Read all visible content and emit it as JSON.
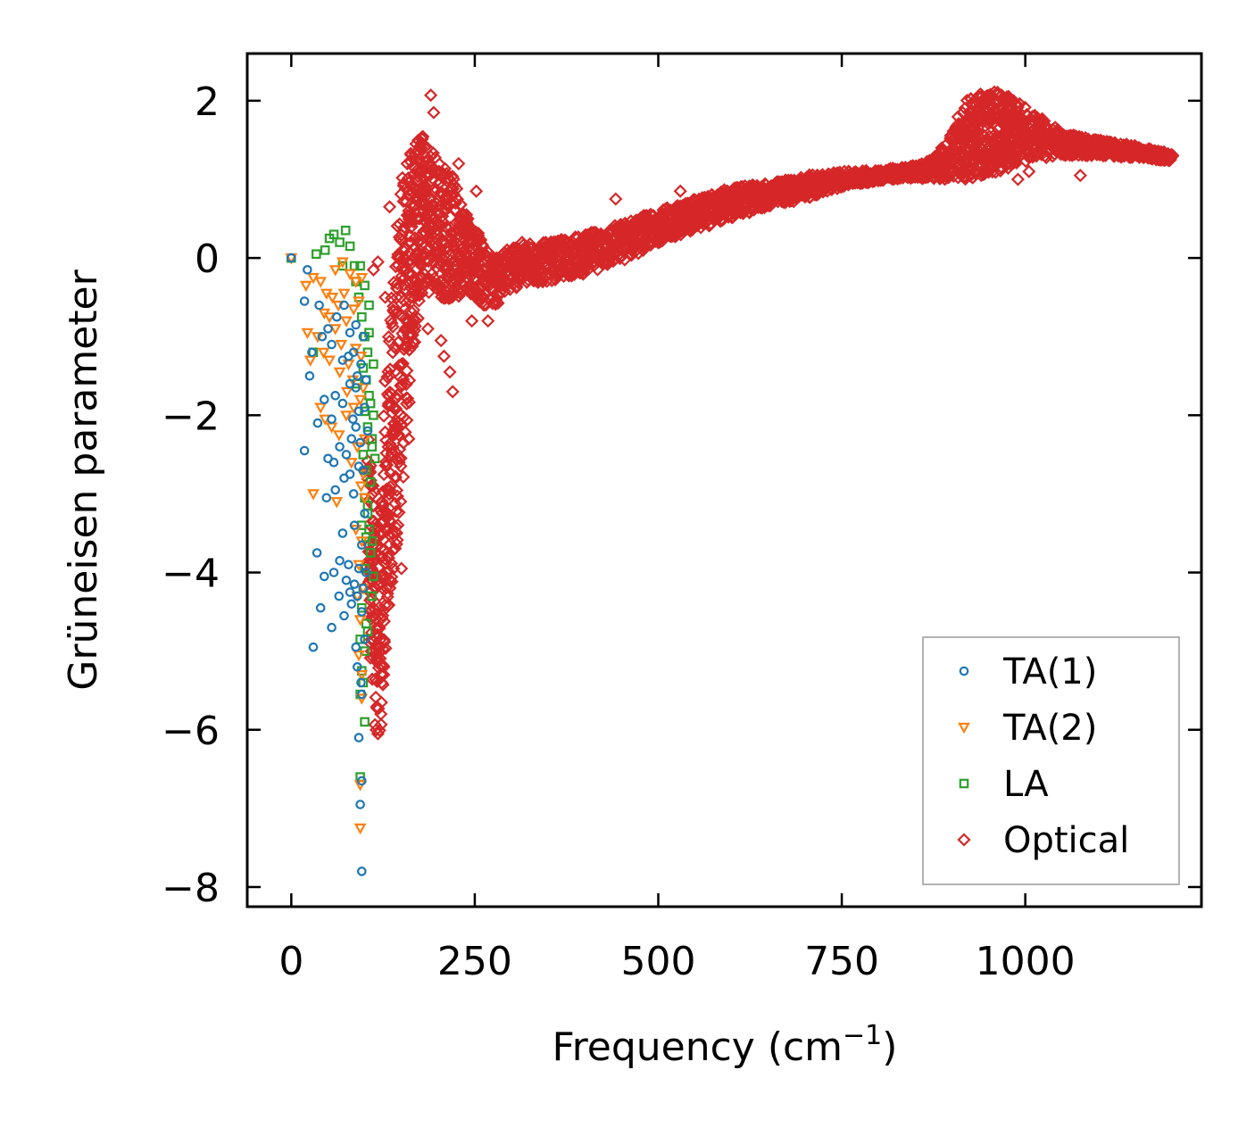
{
  "chart_data": {
    "type": "scatter",
    "title": "",
    "xlabel": "Frequency (cm",
    "xlabel_sup": "−1",
    "xlabel_close": ")",
    "ylabel": "Grüneisen parameter",
    "xlim": [
      -60,
      1240
    ],
    "ylim": [
      -8.25,
      2.6
    ],
    "xticks": [
      0,
      250,
      500,
      750,
      1000
    ],
    "xtick_labels": [
      "0",
      "250",
      "500",
      "750",
      "1000"
    ],
    "yticks": [
      2,
      0,
      -2,
      -4,
      -6,
      -8
    ],
    "ytick_labels": [
      "2",
      "0",
      "−2",
      "−4",
      "−6",
      "−8"
    ],
    "grid": false,
    "legend_position": "lower-right",
    "series": [
      {
        "name": "TA(1)",
        "marker": "circle",
        "color": "#1f77b4",
        "points": [
          [
            0,
            0
          ],
          [
            22,
            -0.15
          ],
          [
            18,
            -0.55
          ],
          [
            38,
            -0.6
          ],
          [
            28,
            -1.2
          ],
          [
            42,
            -1.0
          ],
          [
            50,
            -0.9
          ],
          [
            55,
            -1.1
          ],
          [
            62,
            -0.75
          ],
          [
            70,
            -1.3
          ],
          [
            78,
            -1.25
          ],
          [
            85,
            -1.2
          ],
          [
            90,
            -1.5
          ],
          [
            95,
            -1.35
          ],
          [
            25,
            -1.5
          ],
          [
            45,
            -1.8
          ],
          [
            55,
            -2.05
          ],
          [
            60,
            -1.75
          ],
          [
            70,
            -1.85
          ],
          [
            80,
            -1.6
          ],
          [
            88,
            -1.65
          ],
          [
            92,
            -1.95
          ],
          [
            36,
            -2.1
          ],
          [
            18,
            -2.45
          ],
          [
            50,
            -2.55
          ],
          [
            58,
            -2.6
          ],
          [
            66,
            -2.4
          ],
          [
            75,
            -2.5
          ],
          [
            82,
            -2.3
          ],
          [
            88,
            -2.15
          ],
          [
            94,
            -2.35
          ],
          [
            48,
            -3.05
          ],
          [
            60,
            -2.95
          ],
          [
            72,
            -2.8
          ],
          [
            80,
            -2.75
          ],
          [
            85,
            -3.0
          ],
          [
            92,
            -2.65
          ],
          [
            70,
            -3.5
          ],
          [
            35,
            -3.75
          ],
          [
            45,
            -4.05
          ],
          [
            58,
            -4.0
          ],
          [
            66,
            -3.85
          ],
          [
            75,
            -4.1
          ],
          [
            80,
            -4.25
          ],
          [
            86,
            -4.15
          ],
          [
            92,
            -3.95
          ],
          [
            40,
            -4.45
          ],
          [
            55,
            -4.7
          ],
          [
            65,
            -4.3
          ],
          [
            72,
            -4.55
          ],
          [
            82,
            -4.4
          ],
          [
            90,
            -4.3
          ],
          [
            96,
            -4.5
          ],
          [
            30,
            -4.95
          ],
          [
            88,
            -4.95
          ],
          [
            90,
            -5.2
          ],
          [
            95,
            -5.4
          ],
          [
            92,
            -6.1
          ],
          [
            96,
            -6.65
          ],
          [
            94,
            -6.95
          ],
          [
            96,
            -7.8
          ],
          [
            80,
            -0.95
          ],
          [
            88,
            -0.85
          ],
          [
            98,
            -1.0
          ],
          [
            102,
            -1.55
          ],
          [
            100,
            -1.9
          ],
          [
            104,
            -2.2
          ],
          [
            98,
            -2.7
          ],
          [
            100,
            -3.25
          ],
          [
            96,
            -3.65
          ],
          [
            102,
            -4.0
          ],
          [
            98,
            -4.2
          ],
          [
            100,
            -4.85
          ],
          [
            96,
            -5.55
          ],
          [
            86,
            -3.4
          ],
          [
            78,
            -3.9
          ],
          [
            84,
            -2.05
          ],
          [
            72,
            -0.6
          ]
        ]
      },
      {
        "name": "TA(2)",
        "marker": "triangle-down",
        "color": "#ff7f0e",
        "points": [
          [
            0,
            0
          ],
          [
            20,
            -0.35
          ],
          [
            30,
            -0.25
          ],
          [
            40,
            -0.3
          ],
          [
            48,
            -0.45
          ],
          [
            56,
            -0.5
          ],
          [
            64,
            -0.6
          ],
          [
            72,
            -0.45
          ],
          [
            80,
            -0.2
          ],
          [
            88,
            -0.3
          ],
          [
            96,
            -0.25
          ],
          [
            45,
            -0.7
          ],
          [
            60,
            -0.9
          ],
          [
            75,
            -0.8
          ],
          [
            85,
            -0.65
          ],
          [
            92,
            -0.55
          ],
          [
            22,
            -0.95
          ],
          [
            36,
            -1.0
          ],
          [
            44,
            -1.2
          ],
          [
            52,
            -1.3
          ],
          [
            68,
            -1.1
          ],
          [
            78,
            -1.35
          ],
          [
            88,
            -1.15
          ],
          [
            95,
            -1.25
          ],
          [
            26,
            -1.3
          ],
          [
            40,
            -1.9
          ],
          [
            46,
            -2.05
          ],
          [
            55,
            -2.15
          ],
          [
            65,
            -2.25
          ],
          [
            75,
            -2.0
          ],
          [
            85,
            -1.9
          ],
          [
            94,
            -1.8
          ],
          [
            90,
            -2.4
          ],
          [
            82,
            -2.6
          ],
          [
            95,
            -2.9
          ],
          [
            30,
            -3.0
          ],
          [
            62,
            -3.1
          ],
          [
            88,
            -3.45
          ],
          [
            96,
            -3.6
          ],
          [
            92,
            -3.9
          ],
          [
            90,
            -4.3
          ],
          [
            94,
            -4.6
          ],
          [
            92,
            -5.05
          ],
          [
            96,
            -5.3
          ],
          [
            94,
            -6.7
          ],
          [
            94,
            -7.25
          ],
          [
            60,
            -0.15
          ],
          [
            70,
            -0.05
          ],
          [
            84,
            -1.55
          ],
          [
            98,
            -1.65
          ],
          [
            100,
            -2.3
          ],
          [
            98,
            -2.75
          ],
          [
            100,
            -3.05
          ],
          [
            98,
            -4.2
          ],
          [
            96,
            -5.6
          ],
          [
            76,
            -1.7
          ],
          [
            66,
            -1.45
          ],
          [
            52,
            -0.75
          ]
        ]
      },
      {
        "name": "LA",
        "marker": "square",
        "color": "#2ca02c",
        "points": [
          [
            0,
            0
          ],
          [
            34,
            0.05
          ],
          [
            46,
            0.1
          ],
          [
            52,
            0.25
          ],
          [
            58,
            0.3
          ],
          [
            66,
            0.2
          ],
          [
            74,
            0.35
          ],
          [
            80,
            0.15
          ],
          [
            70,
            -0.1
          ],
          [
            86,
            -0.1
          ],
          [
            94,
            -0.1
          ],
          [
            100,
            -0.35
          ],
          [
            92,
            -0.5
          ],
          [
            96,
            -0.75
          ],
          [
            100,
            -1.0
          ],
          [
            104,
            -1.2
          ],
          [
            98,
            -1.4
          ],
          [
            102,
            -1.55
          ],
          [
            106,
            -1.75
          ],
          [
            100,
            -1.95
          ],
          [
            104,
            -2.15
          ],
          [
            110,
            -2.3
          ],
          [
            98,
            -2.5
          ],
          [
            114,
            -2.55
          ],
          [
            102,
            -2.7
          ],
          [
            108,
            -2.85
          ],
          [
            100,
            -3.05
          ],
          [
            104,
            -3.25
          ],
          [
            96,
            -3.4
          ],
          [
            102,
            -3.55
          ],
          [
            108,
            -3.75
          ],
          [
            100,
            -3.95
          ],
          [
            112,
            -4.05
          ],
          [
            98,
            -4.2
          ],
          [
            110,
            -4.3
          ],
          [
            96,
            -4.45
          ],
          [
            102,
            -4.65
          ],
          [
            94,
            -4.85
          ],
          [
            100,
            -5.0
          ],
          [
            96,
            -5.25
          ],
          [
            94,
            -5.55
          ],
          [
            100,
            -5.9
          ],
          [
            94,
            -6.6
          ],
          [
            112,
            -1.35
          ],
          [
            106,
            -0.95
          ],
          [
            108,
            -1.85
          ],
          [
            110,
            -2.4
          ],
          [
            104,
            -3.15
          ],
          [
            106,
            -3.45
          ],
          [
            104,
            -4.75
          ],
          [
            98,
            -5.4
          ],
          [
            90,
            -1.6
          ],
          [
            30,
            -1.2
          ],
          [
            88,
            -0.3
          ],
          [
            106,
            -0.6
          ],
          [
            110,
            -3.6
          ],
          [
            112,
            -2.0
          ]
        ]
      },
      {
        "name": "Optical",
        "marker": "diamond",
        "color": "#d62728",
        "points": []
      }
    ],
    "optical_band": {
      "center": [
        [
          105,
          -3.5
        ],
        [
          110,
          -4.0
        ],
        [
          115,
          -4.6
        ],
        [
          120,
          -4.8
        ],
        [
          125,
          -4.2
        ],
        [
          130,
          -3.0
        ],
        [
          140,
          -2.0
        ],
        [
          150,
          -1.0
        ],
        [
          165,
          0.2
        ],
        [
          180,
          0.6
        ],
        [
          200,
          0.4
        ],
        [
          220,
          0.25
        ],
        [
          240,
          0.1
        ],
        [
          260,
          -0.2
        ],
        [
          280,
          -0.3
        ],
        [
          300,
          -0.1
        ],
        [
          350,
          -0.05
        ],
        [
          400,
          0.05
        ],
        [
          450,
          0.2
        ],
        [
          500,
          0.4
        ],
        [
          550,
          0.55
        ],
        [
          600,
          0.7
        ],
        [
          650,
          0.8
        ],
        [
          700,
          0.9
        ],
        [
          750,
          1.0
        ],
        [
          800,
          1.05
        ],
        [
          850,
          1.1
        ],
        [
          880,
          1.15
        ],
        [
          900,
          1.3
        ],
        [
          920,
          1.5
        ],
        [
          950,
          1.6
        ],
        [
          980,
          1.6
        ],
        [
          1010,
          1.55
        ],
        [
          1050,
          1.45
        ],
        [
          1100,
          1.4
        ],
        [
          1150,
          1.35
        ],
        [
          1200,
          1.28
        ]
      ],
      "spread": [
        [
          105,
          1.2
        ],
        [
          110,
          1.4
        ],
        [
          115,
          1.4
        ],
        [
          120,
          1.3
        ],
        [
          125,
          1.5
        ],
        [
          130,
          1.8
        ],
        [
          140,
          2.0
        ],
        [
          150,
          2.0
        ],
        [
          165,
          1.4
        ],
        [
          180,
          1.0
        ],
        [
          200,
          0.9
        ],
        [
          220,
          0.8
        ],
        [
          240,
          0.5
        ],
        [
          260,
          0.4
        ],
        [
          280,
          0.3
        ],
        [
          300,
          0.3
        ],
        [
          350,
          0.25
        ],
        [
          400,
          0.25
        ],
        [
          450,
          0.25
        ],
        [
          500,
          0.2
        ],
        [
          550,
          0.2
        ],
        [
          600,
          0.2
        ],
        [
          650,
          0.15
        ],
        [
          700,
          0.15
        ],
        [
          750,
          0.1
        ],
        [
          800,
          0.07
        ],
        [
          850,
          0.08
        ],
        [
          880,
          0.15
        ],
        [
          900,
          0.3
        ],
        [
          920,
          0.5
        ],
        [
          950,
          0.55
        ],
        [
          980,
          0.45
        ],
        [
          1010,
          0.3
        ],
        [
          1050,
          0.15
        ],
        [
          1100,
          0.1
        ],
        [
          1150,
          0.08
        ],
        [
          1200,
          0.05
        ]
      ],
      "outliers": [
        [
          190,
          2.07
        ],
        [
          194,
          1.85
        ],
        [
          170,
          1.45
        ],
        [
          228,
          1.2
        ],
        [
          252,
          0.85
        ],
        [
          134,
          0.65
        ],
        [
          176,
          1.4
        ],
        [
          118,
          -0.05
        ],
        [
          230,
          0.5
        ],
        [
          208,
          -1.25
        ],
        [
          216,
          -1.45
        ],
        [
          220,
          -1.7
        ],
        [
          186,
          -0.9
        ],
        [
          150,
          -3.95
        ],
        [
          122,
          -5.8
        ],
        [
          118,
          -6.05
        ],
        [
          126,
          -5.3
        ],
        [
          990,
          1.0
        ],
        [
          1075,
          1.05
        ],
        [
          940,
          1.05
        ],
        [
          442,
          0.75
        ],
        [
          530,
          0.85
        ],
        [
          134,
          -1.5
        ],
        [
          160,
          -2.3
        ],
        [
          204,
          -1.05
        ],
        [
          246,
          -0.8
        ],
        [
          268,
          -0.8
        ],
        [
          112,
          -0.15
        ],
        [
          128,
          -0.5
        ],
        [
          142,
          -2.8
        ],
        [
          176,
          -0.25
        ],
        [
          1005,
          1.1
        ],
        [
          870,
          1.05
        ]
      ]
    }
  },
  "legend": {
    "items": [
      {
        "label": "TA(1)",
        "color": "#1f77b4",
        "marker": "circle"
      },
      {
        "label": "TA(2)",
        "color": "#ff7f0e",
        "marker": "triangle-down"
      },
      {
        "label": "LA",
        "color": "#2ca02c",
        "marker": "square"
      },
      {
        "label": "Optical",
        "color": "#d62728",
        "marker": "diamond"
      }
    ]
  }
}
